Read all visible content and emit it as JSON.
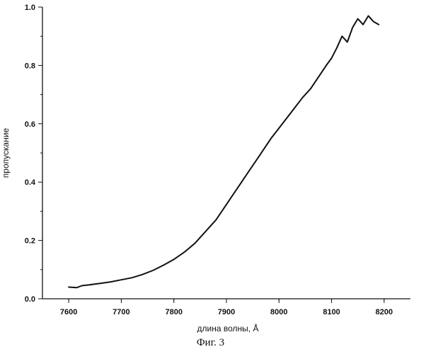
{
  "figure": {
    "caption": "Фиг. 3"
  },
  "chart_data": {
    "type": "line",
    "title": "",
    "xlabel": "длина волны, Å",
    "ylabel": "пропускание",
    "xlim": [
      7550,
      8250
    ],
    "ylim": [
      0.0,
      1.0
    ],
    "x_ticks": [
      7600,
      7700,
      7800,
      7900,
      8000,
      8100,
      8200
    ],
    "y_ticks": [
      0.0,
      0.2,
      0.4,
      0.6,
      0.8,
      1.0
    ],
    "x_tick_labels": [
      "7600",
      "7700",
      "7800",
      "7900",
      "8000",
      "8100",
      "8200"
    ],
    "y_tick_labels": [
      "0.0",
      "0.2",
      "0.4",
      "0.6",
      "0.8",
      "1.0"
    ],
    "grid": false,
    "line_color": "#111111",
    "series": [
      {
        "x": [
          7600,
          7615,
          7625,
          7640,
          7660,
          7680,
          7700,
          7720,
          7740,
          7760,
          7780,
          7800,
          7820,
          7840,
          7860,
          7880,
          7895,
          7910,
          7925,
          7940,
          7955,
          7970,
          7985,
          8000,
          8015,
          8030,
          8045,
          8060,
          8075,
          8090,
          8100,
          8110,
          8120,
          8130,
          8140,
          8150,
          8160,
          8170,
          8180,
          8190
        ],
        "y": [
          0.04,
          0.038,
          0.045,
          0.048,
          0.053,
          0.058,
          0.065,
          0.072,
          0.083,
          0.097,
          0.115,
          0.135,
          0.16,
          0.19,
          0.23,
          0.27,
          0.31,
          0.35,
          0.39,
          0.43,
          0.47,
          0.51,
          0.55,
          0.585,
          0.62,
          0.655,
          0.69,
          0.72,
          0.76,
          0.8,
          0.825,
          0.86,
          0.9,
          0.88,
          0.93,
          0.96,
          0.94,
          0.97,
          0.95,
          0.94
        ]
      }
    ]
  }
}
